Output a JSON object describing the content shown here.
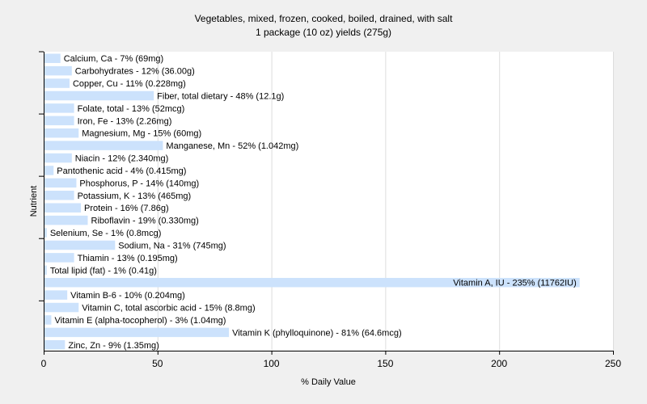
{
  "chart_data": {
    "type": "bar",
    "orientation": "horizontal",
    "title": "Vegetables, mixed, frozen, cooked, boiled, drained, with salt",
    "subtitle": "1 package (10 oz) yields (275g)",
    "xlabel": "% Daily Value",
    "ylabel": "Nutrient",
    "xlim": [
      0,
      250
    ],
    "xticks": [
      0,
      50,
      100,
      150,
      200,
      250
    ],
    "grid": "vertical",
    "bar_color": "#cce2fc",
    "background_color": "#f0f0f0",
    "plot_background": "#ffffff",
    "categories": [
      "Calcium, Ca",
      "Carbohydrates",
      "Copper, Cu",
      "Fiber, total dietary",
      "Folate, total",
      "Iron, Fe",
      "Magnesium, Mg",
      "Manganese, Mn",
      "Niacin",
      "Pantothenic acid",
      "Phosphorus, P",
      "Potassium, K",
      "Protein",
      "Riboflavin",
      "Selenium, Se",
      "Sodium, Na",
      "Thiamin",
      "Total lipid (fat)",
      "Vitamin A, IU",
      "Vitamin B-6",
      "Vitamin C, total ascorbic acid",
      "Vitamin E (alpha-tocopherol)",
      "Vitamin K (phylloquinone)",
      "Zinc, Zn"
    ],
    "values": [
      7,
      12,
      11,
      48,
      13,
      13,
      15,
      52,
      12,
      4,
      14,
      13,
      16,
      19,
      1,
      31,
      13,
      1,
      235,
      10,
      15,
      3,
      81,
      9
    ],
    "labels": [
      "Calcium, Ca - 7% (69mg)",
      "Carbohydrates - 12% (36.00g)",
      "Copper, Cu - 11% (0.228mg)",
      "Fiber, total dietary - 48% (12.1g)",
      "Folate, total - 13% (52mcg)",
      "Iron, Fe - 13% (2.26mg)",
      "Magnesium, Mg - 15% (60mg)",
      "Manganese, Mn - 52% (1.042mg)",
      "Niacin - 12% (2.340mg)",
      "Pantothenic acid - 4% (0.415mg)",
      "Phosphorus, P - 14% (140mg)",
      "Potassium, K - 13% (465mg)",
      "Protein - 16% (7.86g)",
      "Riboflavin - 19% (0.330mg)",
      "Selenium, Se - 1% (0.8mcg)",
      "Sodium, Na - 31% (745mg)",
      "Thiamin - 13% (0.195mg)",
      "Total lipid (fat) - 1% (0.41g)",
      "Vitamin A, IU - 235% (11762IU)",
      "Vitamin B-6 - 10% (0.204mg)",
      "Vitamin C, total ascorbic acid - 15% (8.8mg)",
      "Vitamin E (alpha-tocopherol) - 3% (1.04mg)",
      "Vitamin K (phylloquinone) - 81% (64.6mcg)",
      "Zinc, Zn - 9% (1.35mg)"
    ]
  }
}
